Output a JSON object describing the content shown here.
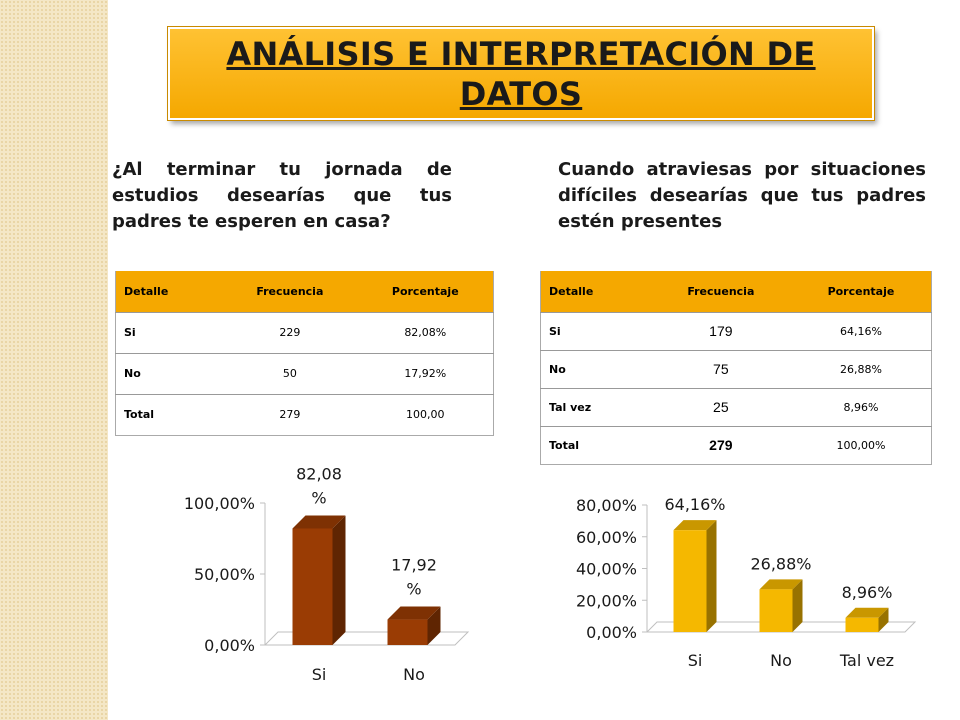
{
  "title": "ANÁLISIS E INTERPRETACIÓN DE DATOS",
  "question_left": "¿Al terminar tu jornada de estudios desearías que tus padres te esperen en casa?",
  "question_right": "Cuando atraviesas por situaciones difíciles desearías que tus padres estén presentes",
  "table_left": {
    "headers": [
      "Detalle",
      "Frecuencia",
      "Porcentaje"
    ],
    "rows": [
      [
        "Si",
        "229",
        "82,08%"
      ],
      [
        "No",
        "50",
        "17,92%"
      ],
      [
        "Total",
        "279",
        "100,00"
      ]
    ]
  },
  "table_right": {
    "headers": [
      "Detalle",
      "Frecuencia",
      "Porcentaje"
    ],
    "rows": [
      [
        "Si",
        "179",
        "64,16%"
      ],
      [
        "No",
        "75",
        "26,88%"
      ],
      [
        "Tal vez",
        "25",
        "8,96%"
      ],
      [
        "Total",
        "279",
        "100,00%"
      ]
    ]
  },
  "chart_data": [
    {
      "type": "bar",
      "categories": [
        "Si",
        "No"
      ],
      "values": [
        82.08,
        17.92
      ],
      "data_labels": [
        "82,08 %",
        "17,92 %"
      ],
      "y_ticks": [
        "0,00%",
        "50,00%",
        "100,00%"
      ],
      "ylim": [
        0,
        100
      ],
      "color": "#9a3c04",
      "grid": false,
      "style": "3d"
    },
    {
      "type": "bar",
      "categories": [
        "Si",
        "No",
        "Tal vez"
      ],
      "values": [
        64.16,
        26.88,
        8.96
      ],
      "data_labels": [
        "64,16%",
        "26,88%",
        "8,96%"
      ],
      "y_ticks": [
        "0,00%",
        "20,00%",
        "40,00%",
        "60,00%",
        "80,00%"
      ],
      "ylim": [
        0,
        80
      ],
      "color": "#f5b800",
      "grid": false,
      "style": "3d"
    }
  ]
}
